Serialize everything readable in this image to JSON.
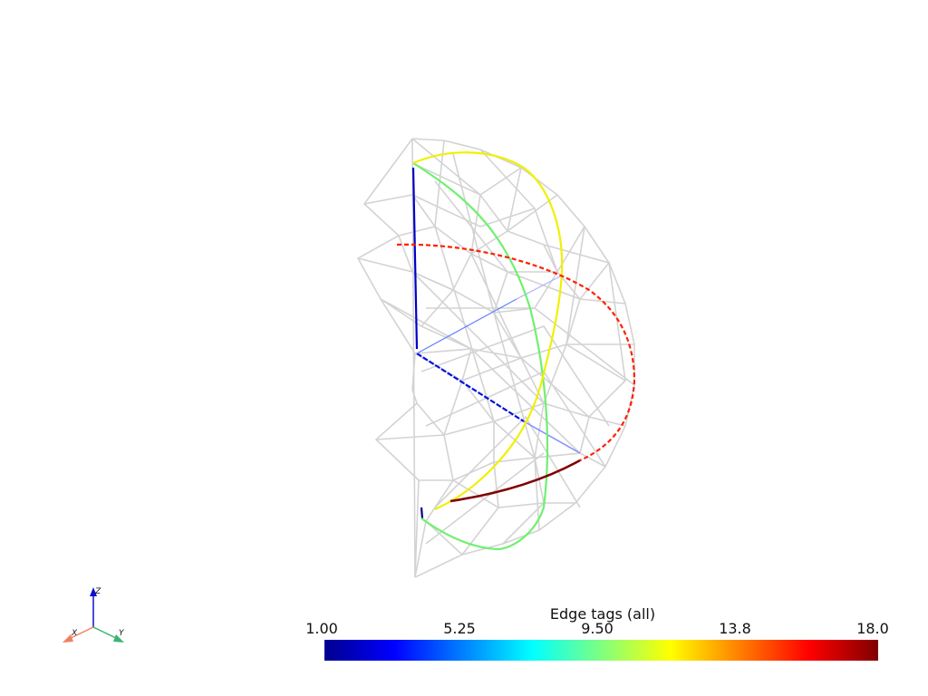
{
  "colorbar": {
    "title": "Edge tags (all)",
    "ticks": [
      "1.00",
      "5.25",
      "9.50",
      "13.8",
      "18.0"
    ],
    "colors": [
      "#00008f",
      "#0000ff",
      "#00ffff",
      "#ffff00",
      "#ff0000",
      "#800000"
    ]
  },
  "axes": {
    "x_label": "X",
    "y_label": "Y",
    "z_label": "Z",
    "x_color": "#f08060",
    "y_color": "#3cb371",
    "z_color": "#1010d0"
  },
  "mesh": {
    "color": "#d3d3d3"
  }
}
